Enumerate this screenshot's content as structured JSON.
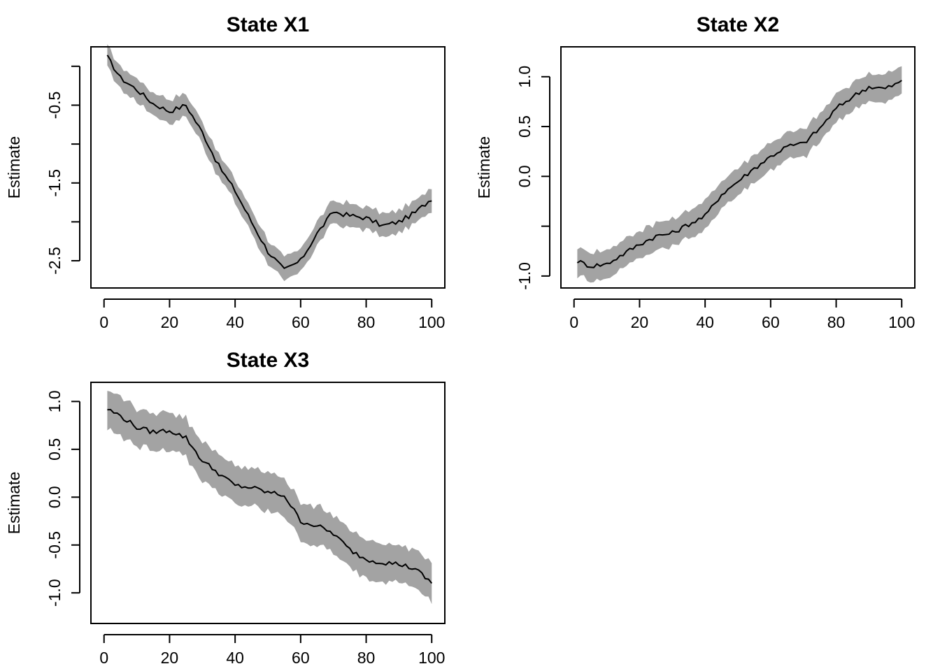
{
  "colors": {
    "band": "#a3a3a3",
    "line": "#000000"
  },
  "chart_data": [
    {
      "type": "line",
      "title": "State X1",
      "xlabel": "",
      "ylabel": "Estimate",
      "xlim": [
        0,
        100
      ],
      "ylim": [
        -2.85,
        0.25
      ],
      "xticks": [
        0,
        20,
        40,
        60,
        80,
        100
      ],
      "xtick_labels": [
        "0",
        "20",
        "40",
        "60",
        "80",
        "100"
      ],
      "yticks": [
        0,
        -0.5,
        -1,
        -1.5,
        -2,
        -2.5
      ],
      "ytick_labels": [
        "",
        "-0.5",
        "",
        "-1.5",
        "",
        "-2.5"
      ],
      "x": [
        1,
        5,
        10,
        15,
        20,
        25,
        30,
        35,
        40,
        45,
        50,
        55,
        60,
        65,
        70,
        75,
        80,
        85,
        90,
        95,
        100
      ],
      "series": [
        {
          "values": [
            0.12,
            -0.15,
            -0.3,
            -0.48,
            -0.58,
            -0.5,
            -0.85,
            -1.28,
            -1.6,
            -2.0,
            -2.38,
            -2.62,
            -2.5,
            -2.15,
            -1.87,
            -1.92,
            -1.95,
            -2.05,
            -2.0,
            -1.88,
            -1.7
          ]
        }
      ],
      "band_halfwidth": 0.15
    },
    {
      "type": "line",
      "title": "State X2",
      "xlabel": "",
      "ylabel": "Estimate",
      "xlim": [
        0,
        100
      ],
      "ylim": [
        -1.12,
        1.3
      ],
      "xticks": [
        0,
        20,
        40,
        60,
        80,
        100
      ],
      "xtick_labels": [
        "0",
        "20",
        "40",
        "60",
        "80",
        "100"
      ],
      "yticks": [
        -1,
        -0.5,
        0,
        0.5,
        1
      ],
      "ytick_labels": [
        "-1.0",
        "",
        "0.0",
        "0.5",
        "1.0"
      ],
      "x": [
        1,
        5,
        10,
        15,
        20,
        25,
        30,
        35,
        40,
        45,
        50,
        55,
        60,
        65,
        70,
        75,
        80,
        85,
        90,
        95,
        100
      ],
      "series": [
        {
          "values": [
            -0.85,
            -0.9,
            -0.88,
            -0.78,
            -0.68,
            -0.6,
            -0.57,
            -0.48,
            -0.4,
            -0.18,
            -0.05,
            0.08,
            0.2,
            0.3,
            0.33,
            0.48,
            0.68,
            0.8,
            0.9,
            0.88,
            0.95
          ]
        }
      ],
      "band_halfwidth": 0.14
    },
    {
      "type": "line",
      "title": "State X3",
      "xlabel": "",
      "ylabel": "Estimate",
      "xlim": [
        0,
        100
      ],
      "ylim": [
        -1.32,
        1.2
      ],
      "xticks": [
        0,
        20,
        40,
        60,
        80,
        100
      ],
      "xtick_labels": [
        "0",
        "20",
        "40",
        "60",
        "80",
        "100"
      ],
      "yticks": [
        1,
        0.5,
        0,
        -0.5,
        -1
      ],
      "ytick_labels": [
        "1.0",
        "0.5",
        "0.0",
        "-0.5",
        "-1.0"
      ],
      "x": [
        1,
        5,
        10,
        15,
        20,
        25,
        30,
        35,
        40,
        45,
        50,
        55,
        60,
        65,
        70,
        75,
        80,
        85,
        90,
        95,
        100
      ],
      "series": [
        {
          "values": [
            0.92,
            0.85,
            0.73,
            0.68,
            0.7,
            0.62,
            0.38,
            0.25,
            0.12,
            0.1,
            0.05,
            0.02,
            -0.25,
            -0.3,
            -0.38,
            -0.55,
            -0.65,
            -0.68,
            -0.7,
            -0.75,
            -0.9
          ]
        }
      ],
      "band_halfwidth": 0.2
    }
  ]
}
